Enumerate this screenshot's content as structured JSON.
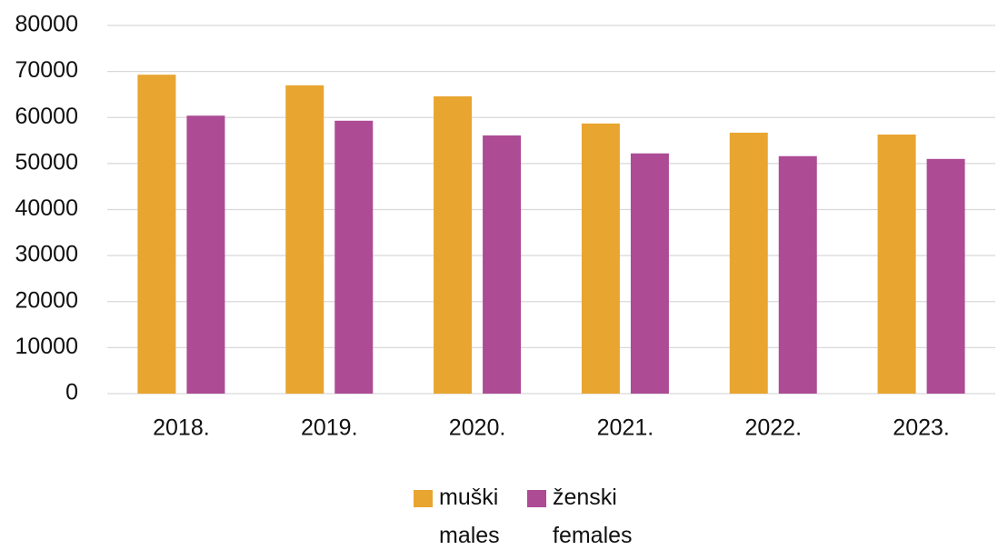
{
  "chart_data": {
    "type": "bar",
    "categories": [
      "2018.",
      "2019.",
      "2020.",
      "2021.",
      "2022.",
      "2023."
    ],
    "series": [
      {
        "name": "muški\nmales",
        "color": "#e8a530",
        "values": [
          69300,
          67000,
          64600,
          58700,
          56700,
          56300
        ]
      },
      {
        "name": "ženski\nfemales",
        "color": "#ad4b95",
        "values": [
          60400,
          59300,
          56100,
          52200,
          51600,
          51000
        ]
      }
    ],
    "ylim": [
      0,
      80000
    ],
    "yticks": [
      0,
      10000,
      20000,
      30000,
      40000,
      50000,
      60000,
      70000,
      80000
    ],
    "grid": true,
    "legend": "bottom"
  }
}
